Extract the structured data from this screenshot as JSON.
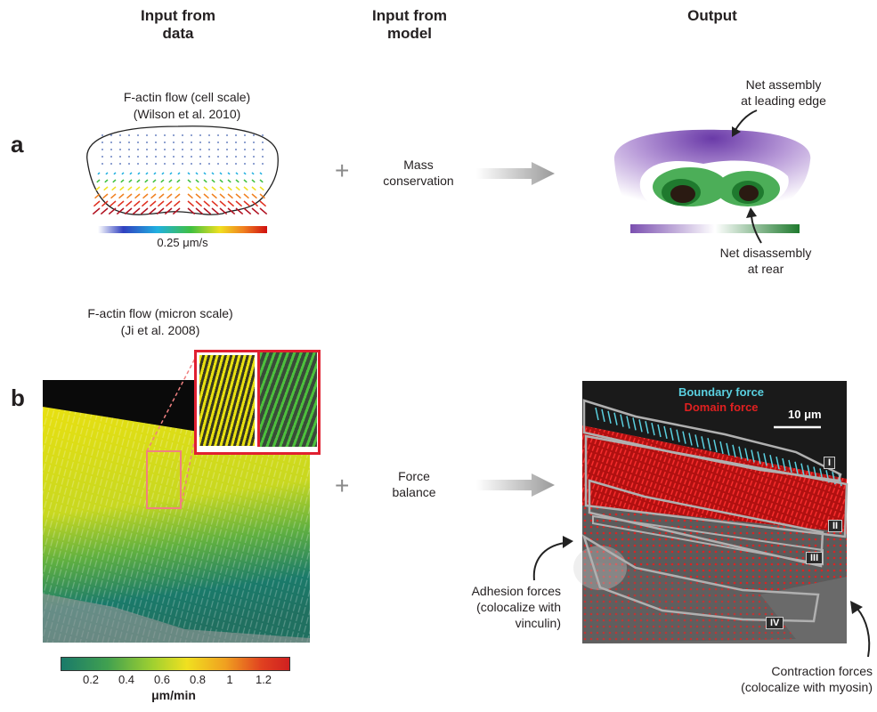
{
  "headers": {
    "input_from_data": "Input from\ndata",
    "input_from_model": "Input from\nmodel",
    "output": "Output"
  },
  "panel_a": {
    "letter": "a",
    "title": "F-actin flow (cell scale)",
    "citation": "(Wilson et al. 2010)",
    "scale_label": "0.25 μm/s",
    "plus": "+",
    "model": "Mass\nconservation",
    "annotation_top": "Net assembly\nat leading edge",
    "annotation_bottom": "Net disassembly\nat rear"
  },
  "panel_b": {
    "letter": "b",
    "title": "F-actin flow (micron scale)",
    "citation": "(Ji et al. 2008)",
    "plus": "+",
    "model": "Force\nbalance",
    "legend_boundary": "Boundary force",
    "legend_domain": "Domain force",
    "scale_bar": "10 μm",
    "regions": [
      "I",
      "II",
      "III",
      "IV"
    ],
    "annotation_adhesion": "Adhesion forces\n(colocalize with\nvinculin)",
    "annotation_contraction": "Contraction forces\n(colocalize with myosin)",
    "colorbar_ticks": [
      "0.2",
      "0.4",
      "0.6",
      "0.8",
      "1",
      "1.2"
    ],
    "colorbar_unit": "μm/min"
  },
  "colors": {
    "boundary_force": "#4fc3d6",
    "domain_force": "#e02020",
    "assembly": "#7b4fb0",
    "disassembly": "#1f7a2e"
  }
}
